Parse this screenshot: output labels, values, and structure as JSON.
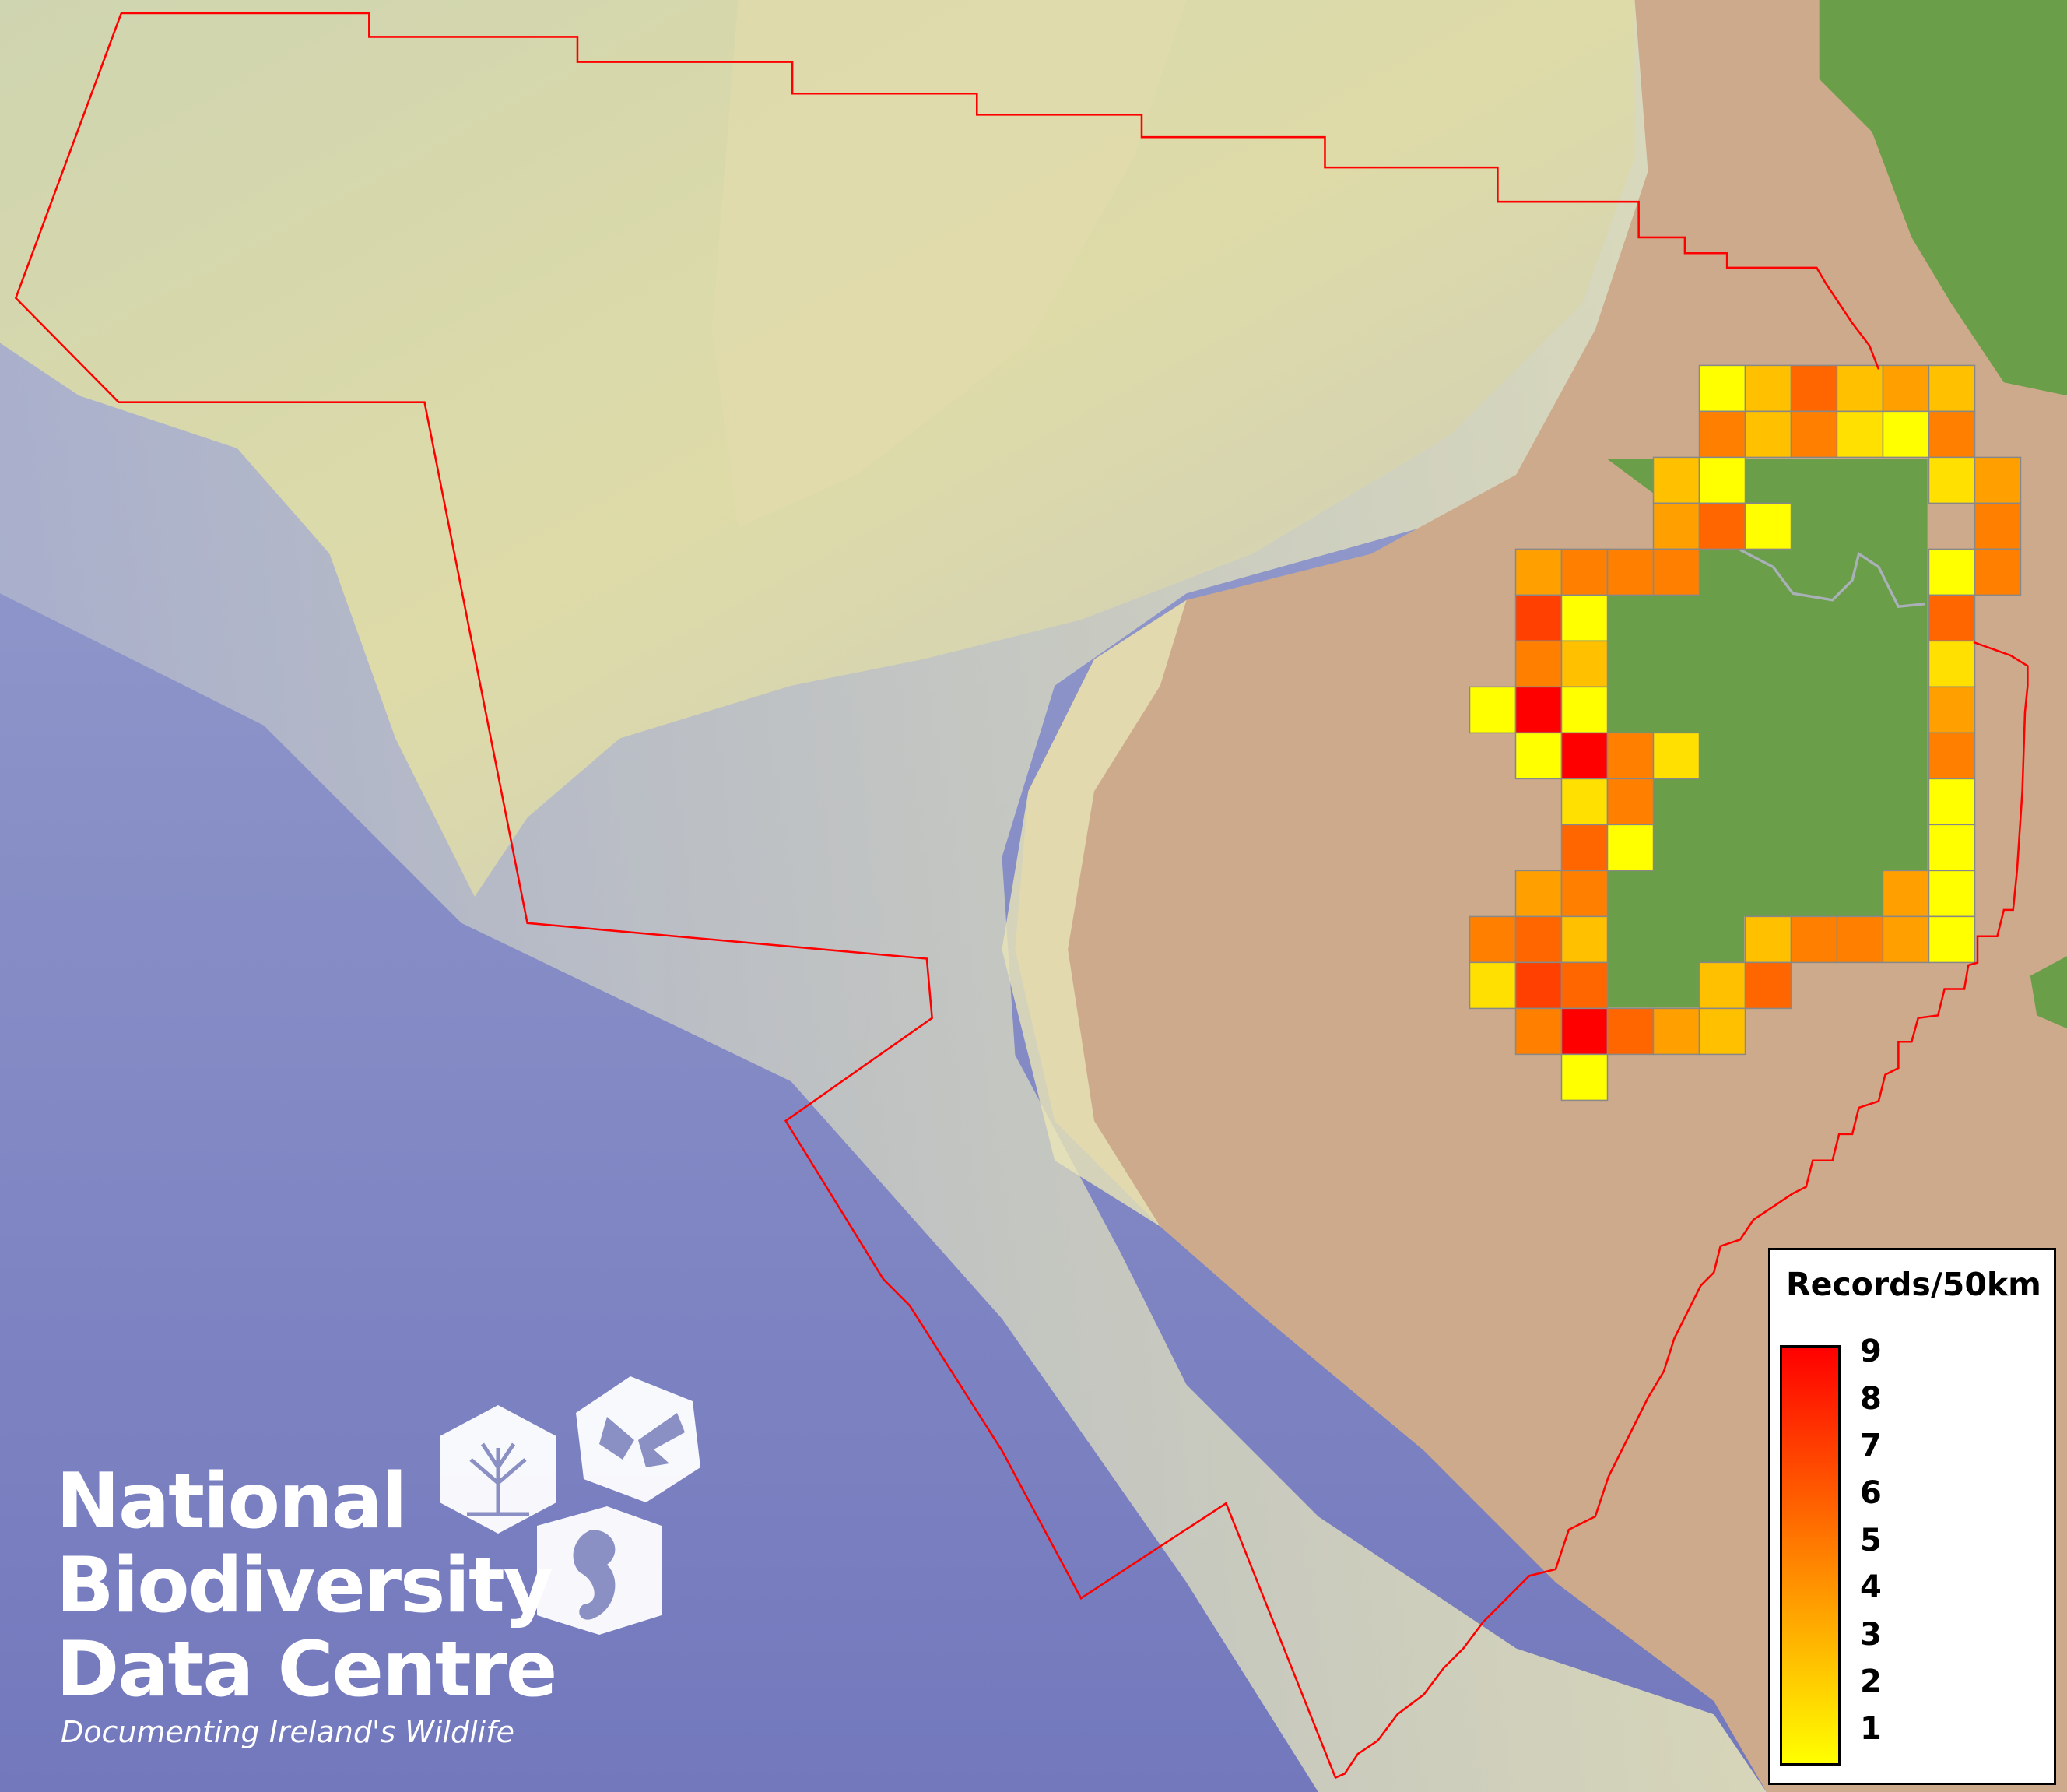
{
  "map": {
    "boundary_color": "#ff0000",
    "colors": {
      "sea": "#7f87c3",
      "shelf": "#d9d9a6",
      "land": "#cdaa8c",
      "vegetation": "#6a9e48",
      "grid_border": "#888888"
    },
    "grid": {
      "cell_size_label": "50km",
      "value_colors": {
        "1": "#ffff00",
        "2": "#ffe000",
        "3": "#ffc000",
        "4": "#ffa000",
        "5": "#ff8000",
        "6": "#ff6600",
        "7": "#ff4000",
        "8": "#ff2000",
        "9": "#ff0000"
      },
      "cells": [
        {
          "row": 0,
          "col": 5,
          "records": 1
        },
        {
          "row": 0,
          "col": 6,
          "records": 3
        },
        {
          "row": 0,
          "col": 7,
          "records": 6
        },
        {
          "row": 0,
          "col": 8,
          "records": 3
        },
        {
          "row": 0,
          "col": 9,
          "records": 4
        },
        {
          "row": 0,
          "col": 10,
          "records": 3
        },
        {
          "row": 1,
          "col": 5,
          "records": 5
        },
        {
          "row": 1,
          "col": 6,
          "records": 3
        },
        {
          "row": 1,
          "col": 7,
          "records": 5
        },
        {
          "row": 1,
          "col": 8,
          "records": 2
        },
        {
          "row": 1,
          "col": 9,
          "records": 1
        },
        {
          "row": 1,
          "col": 10,
          "records": 5
        },
        {
          "row": 2,
          "col": 4,
          "records": 3
        },
        {
          "row": 2,
          "col": 5,
          "records": 1
        },
        {
          "row": 2,
          "col": 10,
          "records": 2
        },
        {
          "row": 2,
          "col": 11,
          "records": 4
        },
        {
          "row": 3,
          "col": 4,
          "records": 4
        },
        {
          "row": 3,
          "col": 5,
          "records": 6
        },
        {
          "row": 3,
          "col": 6,
          "records": 1
        },
        {
          "row": 3,
          "col": 11,
          "records": 5
        },
        {
          "row": 4,
          "col": 1,
          "records": 4
        },
        {
          "row": 4,
          "col": 2,
          "records": 5
        },
        {
          "row": 4,
          "col": 3,
          "records": 5
        },
        {
          "row": 4,
          "col": 4,
          "records": 5
        },
        {
          "row": 4,
          "col": 10,
          "records": 1
        },
        {
          "row": 4,
          "col": 11,
          "records": 5
        },
        {
          "row": 5,
          "col": 1,
          "records": 7
        },
        {
          "row": 5,
          "col": 2,
          "records": 1
        },
        {
          "row": 5,
          "col": 10,
          "records": 6
        },
        {
          "row": 6,
          "col": 1,
          "records": 5
        },
        {
          "row": 6,
          "col": 2,
          "records": 3
        },
        {
          "row": 6,
          "col": 10,
          "records": 2
        },
        {
          "row": 7,
          "col": 0,
          "records": 1
        },
        {
          "row": 7,
          "col": 1,
          "records": 9
        },
        {
          "row": 7,
          "col": 2,
          "records": 1
        },
        {
          "row": 7,
          "col": 10,
          "records": 4
        },
        {
          "row": 8,
          "col": 1,
          "records": 1
        },
        {
          "row": 8,
          "col": 2,
          "records": 9
        },
        {
          "row": 8,
          "col": 3,
          "records": 5
        },
        {
          "row": 8,
          "col": 4,
          "records": 2
        },
        {
          "row": 8,
          "col": 10,
          "records": 5
        },
        {
          "row": 9,
          "col": 2,
          "records": 2
        },
        {
          "row": 9,
          "col": 3,
          "records": 5
        },
        {
          "row": 9,
          "col": 10,
          "records": 1
        },
        {
          "row": 10,
          "col": 2,
          "records": 6
        },
        {
          "row": 10,
          "col": 3,
          "records": 1
        },
        {
          "row": 10,
          "col": 10,
          "records": 1
        },
        {
          "row": 11,
          "col": 1,
          "records": 4
        },
        {
          "row": 11,
          "col": 2,
          "records": 5
        },
        {
          "row": 11,
          "col": 9,
          "records": 4
        },
        {
          "row": 11,
          "col": 10,
          "records": 1
        },
        {
          "row": 12,
          "col": 0,
          "records": 5
        },
        {
          "row": 12,
          "col": 1,
          "records": 6
        },
        {
          "row": 12,
          "col": 2,
          "records": 3
        },
        {
          "row": 12,
          "col": 6,
          "records": 3
        },
        {
          "row": 12,
          "col": 7,
          "records": 5
        },
        {
          "row": 12,
          "col": 8,
          "records": 5
        },
        {
          "row": 12,
          "col": 9,
          "records": 4
        },
        {
          "row": 12,
          "col": 10,
          "records": 1
        },
        {
          "row": 13,
          "col": 0,
          "records": 2
        },
        {
          "row": 13,
          "col": 1,
          "records": 7
        },
        {
          "row": 13,
          "col": 2,
          "records": 6
        },
        {
          "row": 13,
          "col": 5,
          "records": 3
        },
        {
          "row": 13,
          "col": 6,
          "records": 6
        },
        {
          "row": 14,
          "col": 1,
          "records": 5
        },
        {
          "row": 14,
          "col": 2,
          "records": 9
        },
        {
          "row": 14,
          "col": 3,
          "records": 6
        },
        {
          "row": 14,
          "col": 4,
          "records": 4
        },
        {
          "row": 14,
          "col": 5,
          "records": 3
        },
        {
          "row": 15,
          "col": 2,
          "records": 1
        }
      ]
    }
  },
  "legend": {
    "title": "Records/50km",
    "min": 1,
    "max": 9,
    "labels": [
      "9",
      "8",
      "7",
      "6",
      "5",
      "4",
      "3",
      "2",
      "1"
    ],
    "color_low": "#ffff00",
    "color_mid": "#ff8000",
    "color_high": "#ff0000"
  },
  "logo": {
    "line1": "National",
    "line2": "Biodiversity",
    "line3": "Data Centre",
    "tagline": "Documenting Ireland's Wildlife",
    "icons": [
      "tree-icon",
      "butterfly-icon",
      "seahorse-icon"
    ]
  }
}
